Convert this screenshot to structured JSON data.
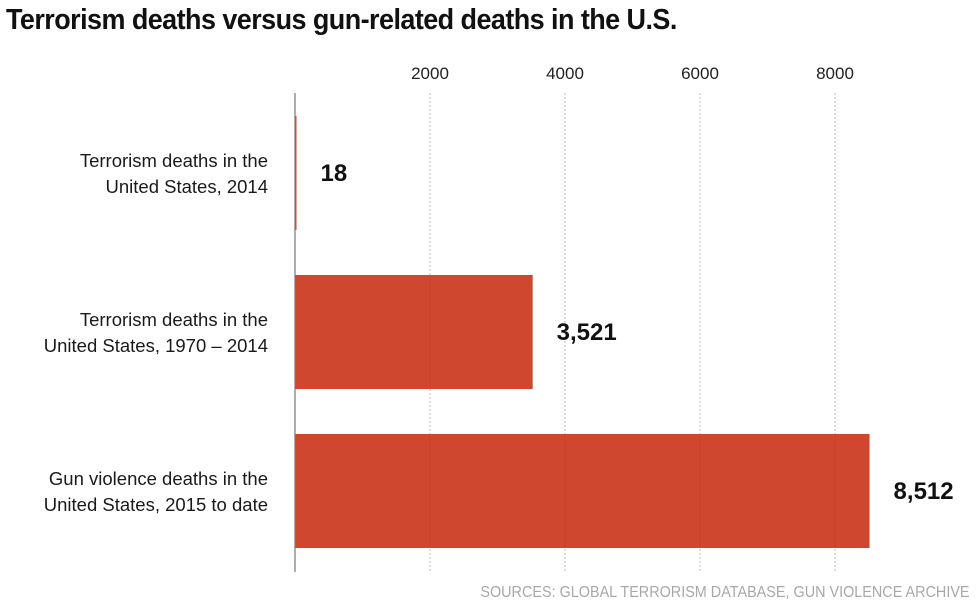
{
  "title": "Terrorism deaths versus gun-related deaths in the U.S.",
  "source": "SOURCES: GLOBAL TERRORISM DATABASE, GUN VIOLENCE ARCHIVE",
  "colors": {
    "bar": "#d04730",
    "axis": "#777777",
    "grid": "#bbbbbb"
  },
  "chart_data": {
    "type": "bar",
    "orientation": "horizontal",
    "title": "Terrorism deaths versus gun-related deaths in the U.S.",
    "xlabel": "",
    "ylabel": "",
    "xlim": [
      0,
      8500
    ],
    "xticks": [
      2000,
      4000,
      6000,
      8000
    ],
    "tick_labels": [
      "2000",
      "4000",
      "6000",
      "8000"
    ],
    "axis_position": "top",
    "grid": true,
    "categories": [
      [
        "Terrorism deaths in the",
        "United States, 2014"
      ],
      [
        "Terrorism deaths in the",
        "United States, 1970 – 2014"
      ],
      [
        "Gun violence deaths in the",
        "United States, 2015 to date"
      ]
    ],
    "values": [
      18,
      3521,
      8512
    ],
    "value_labels": [
      "18",
      "3,521",
      "8,512"
    ]
  }
}
